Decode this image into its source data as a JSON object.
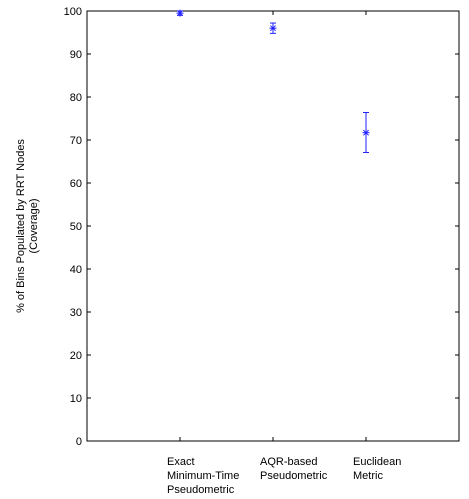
{
  "chart_data": {
    "type": "scatter",
    "title": "",
    "ylabel_lines": [
      "% of Bins Populated by RRT Nodes",
      "(Coverage)"
    ],
    "ylim": [
      0,
      100
    ],
    "yticks": [
      "0",
      "10",
      "20",
      "30",
      "40",
      "50",
      "60",
      "70",
      "80",
      "90",
      "100"
    ],
    "grid": false,
    "categories": [
      [
        "Exact",
        "Minimum-Time",
        "Pseudometric"
      ],
      [
        "AQR-based",
        "Pseudometric"
      ],
      [
        "Euclidean",
        "Metric"
      ]
    ],
    "points": [
      {
        "mean": 99.5,
        "lower": 99.0,
        "upper": 100.0
      },
      {
        "mean": 96.0,
        "lower": 94.8,
        "upper": 97.2
      },
      {
        "mean": 71.7,
        "lower": 67.1,
        "upper": 76.4
      }
    ],
    "marker": "asterisk",
    "color": "#1f1fff"
  }
}
